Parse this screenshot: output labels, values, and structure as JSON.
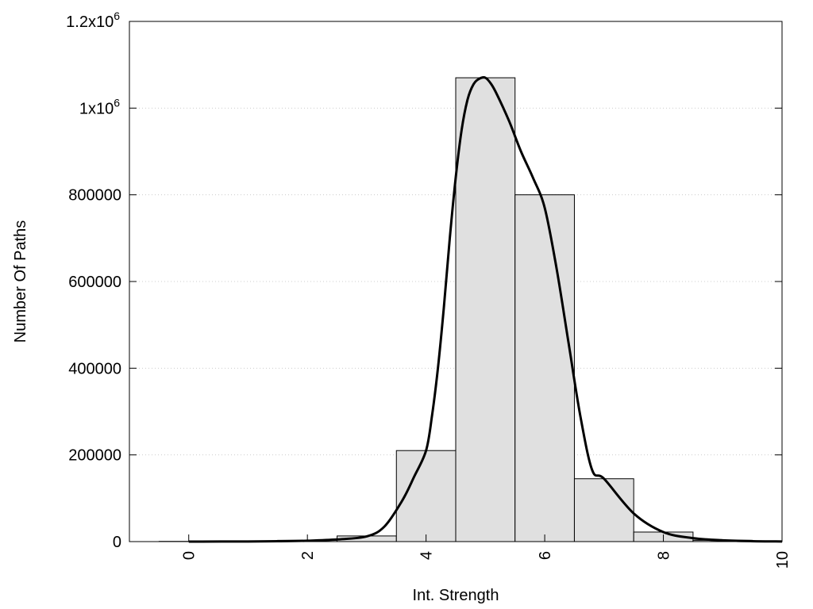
{
  "chart_data": {
    "type": "bar",
    "title": "",
    "xlabel": "Int. Strength",
    "ylabel": "Number Of Paths",
    "xlim": [
      -1,
      10
    ],
    "ylim": [
      0,
      1200000
    ],
    "grid": "horizontal-dotted",
    "legend": "none",
    "x_ticks": [
      {
        "value": 0,
        "label": "0"
      },
      {
        "value": 2,
        "label": "2"
      },
      {
        "value": 4,
        "label": "4"
      },
      {
        "value": 6,
        "label": "6"
      },
      {
        "value": 8,
        "label": "8"
      },
      {
        "value": 10,
        "label": "10"
      }
    ],
    "y_ticks": [
      {
        "value": 0,
        "label": "0"
      },
      {
        "value": 200000,
        "label": "200000"
      },
      {
        "value": 400000,
        "label": "400000"
      },
      {
        "value": 600000,
        "label": "600000"
      },
      {
        "value": 800000,
        "label": "800000"
      },
      {
        "value": 1000000,
        "label": "1x10",
        "sup": "6"
      },
      {
        "value": 1200000,
        "label": "1.2x10",
        "sup": "6"
      }
    ],
    "bar_width": 1,
    "bars": [
      {
        "x": 0,
        "value": 500
      },
      {
        "x": 1,
        "value": 1000
      },
      {
        "x": 2,
        "value": 3000
      },
      {
        "x": 3,
        "value": 13000
      },
      {
        "x": 4,
        "value": 210000
      },
      {
        "x": 5,
        "value": 1070000
      },
      {
        "x": 6,
        "value": 800000
      },
      {
        "x": 7,
        "value": 145000
      },
      {
        "x": 8,
        "value": 22000
      },
      {
        "x": 9,
        "value": 3000
      }
    ],
    "bar_color": "#e0e0e0",
    "curve_color": "#000000",
    "curve": {
      "x": [
        0,
        1,
        1.5,
        2,
        2.5,
        3,
        3.3,
        3.6,
        3.8,
        4,
        4.1,
        4.2,
        4.3,
        4.4,
        4.5,
        4.6,
        4.7,
        4.8,
        4.9,
        5.0,
        5.1,
        5.2,
        5.4,
        5.6,
        5.8,
        6.0,
        6.2,
        6.4,
        6.6,
        6.8,
        7.0,
        7.5,
        8,
        8.5,
        9,
        9.5,
        10
      ],
      "y": [
        0,
        300,
        800,
        2000,
        5000,
        12000,
        35000,
        95000,
        150000,
        210000,
        290000,
        400000,
        540000,
        700000,
        840000,
        950000,
        1020000,
        1055000,
        1068000,
        1070000,
        1055000,
        1030000,
        970000,
        900000,
        840000,
        770000,
        630000,
        460000,
        290000,
        165000,
        145000,
        65000,
        22000,
        8000,
        3000,
        1000,
        300
      ]
    }
  }
}
